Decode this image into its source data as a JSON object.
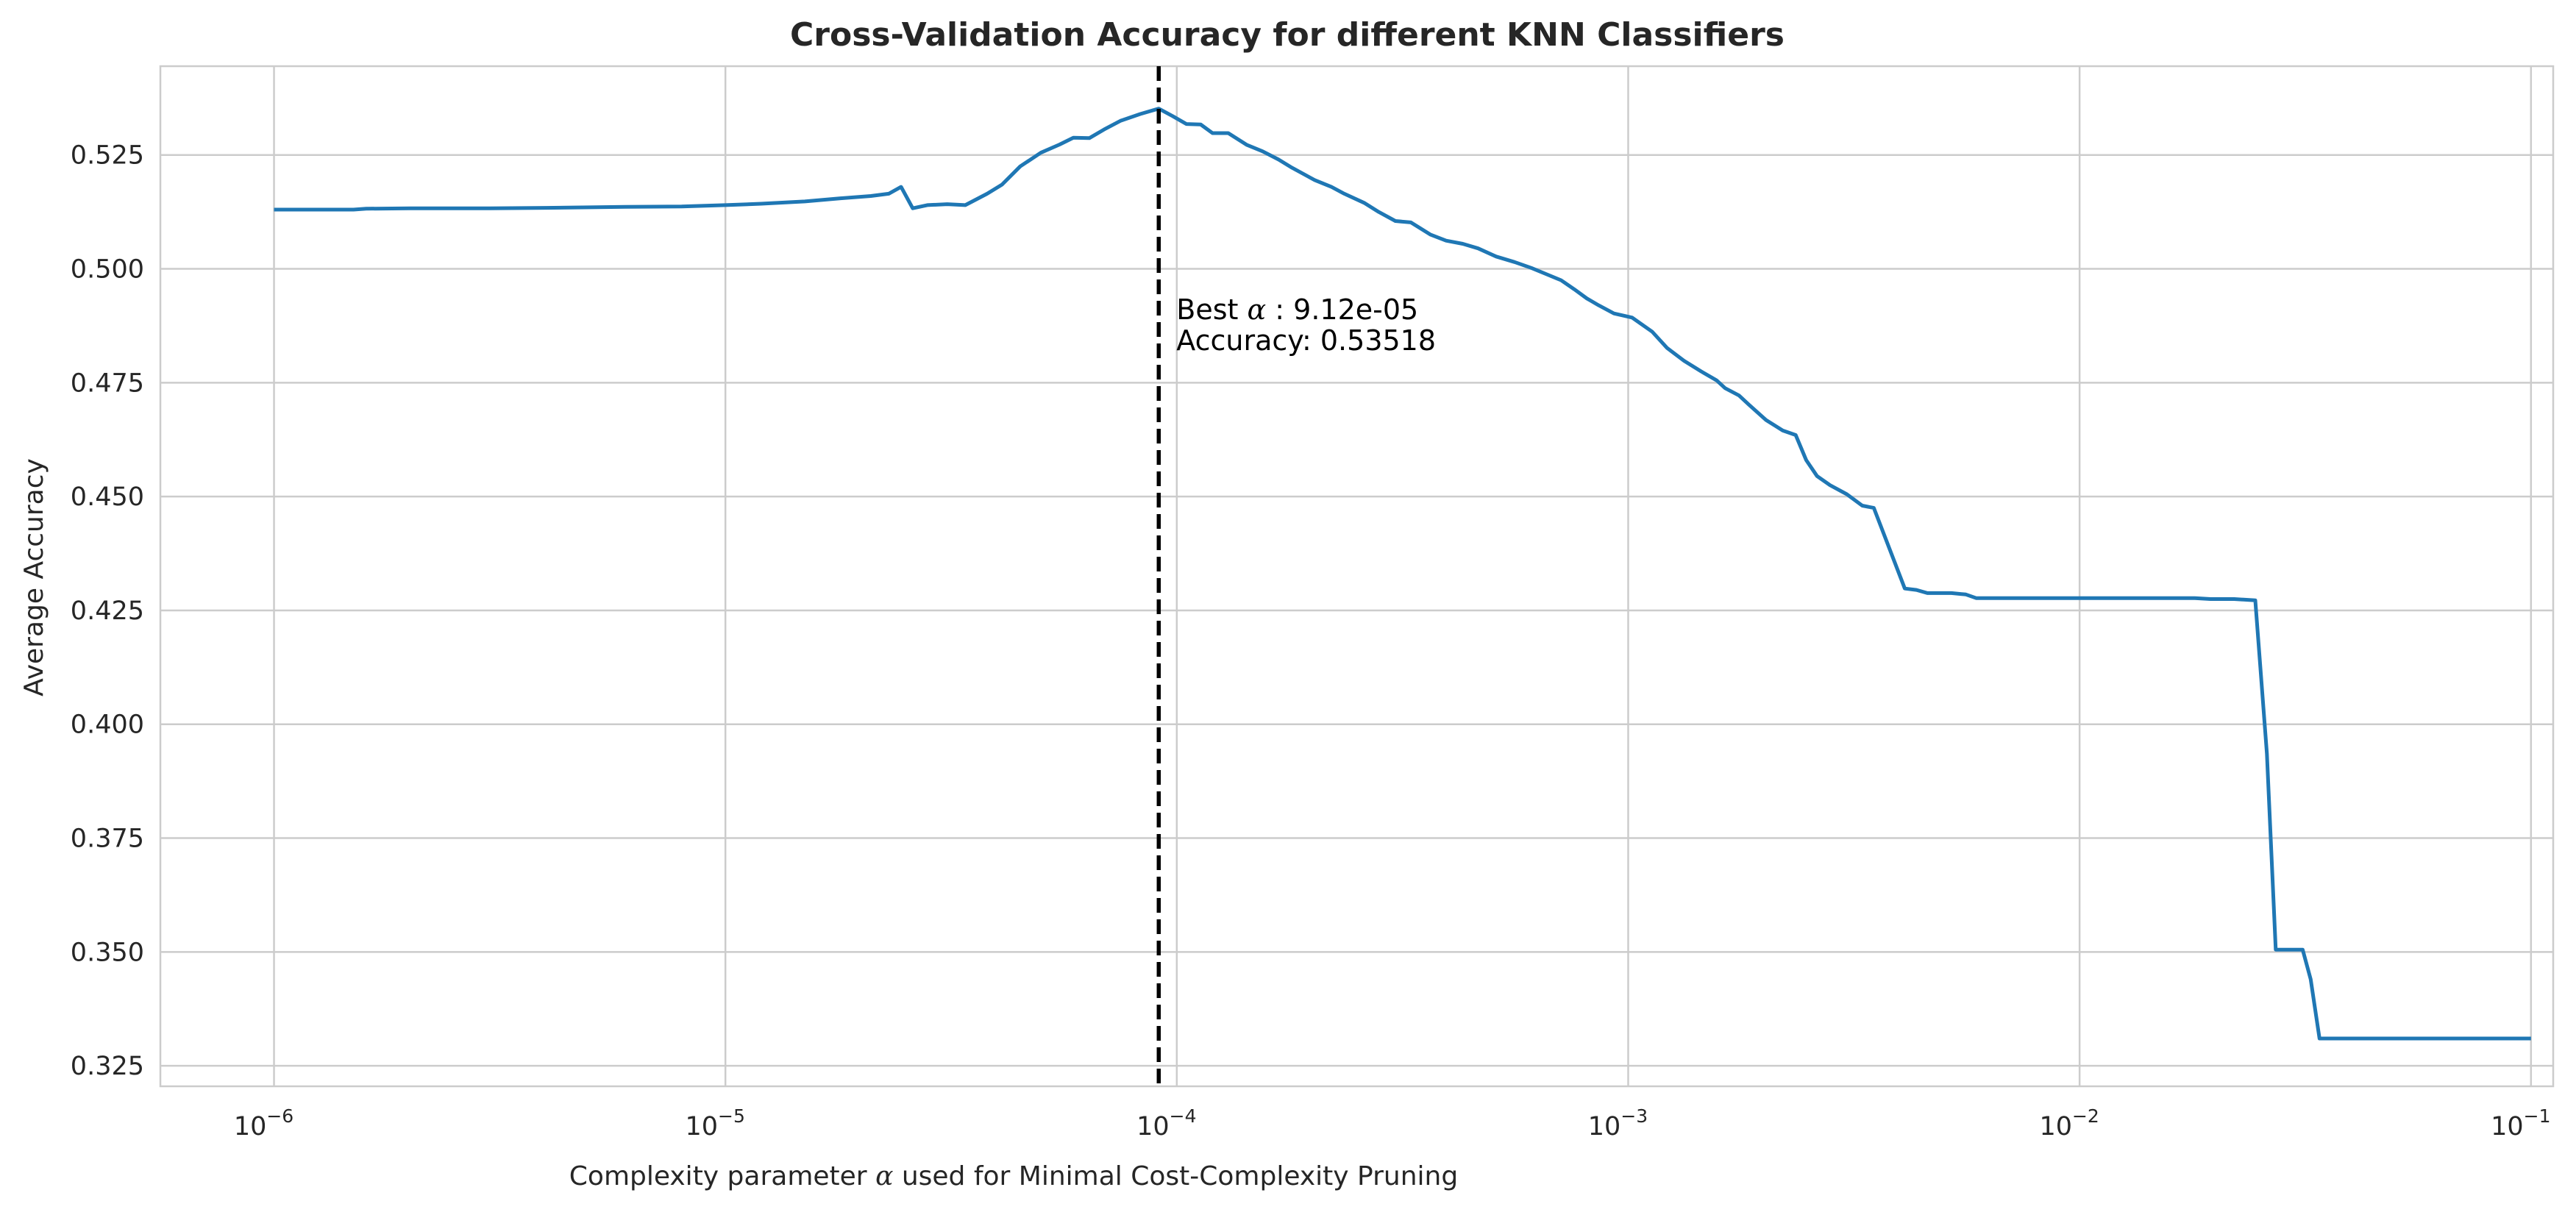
{
  "chart_data": {
    "type": "line",
    "title": "Cross-Validation Accuracy for different KNN Classifiers",
    "xlabel": "Complexity parameter α used for Minimal Cost-Complexity Pruning",
    "ylabel": "Average Accuracy",
    "xscale": "log",
    "xlim": [
      5.6e-07,
      0.112
    ],
    "ylim": [
      0.3205,
      0.5445
    ],
    "grid": true,
    "colors": {
      "series": "#1f77b4",
      "best_line": "#000000"
    },
    "x_ticks": [
      {
        "value": 1e-06,
        "base": "10",
        "exp": "−6"
      },
      {
        "value": 1e-05,
        "base": "10",
        "exp": "−5"
      },
      {
        "value": 0.0001,
        "base": "10",
        "exp": "−4"
      },
      {
        "value": 0.001,
        "base": "10",
        "exp": "−3"
      },
      {
        "value": 0.01,
        "base": "10",
        "exp": "−2"
      },
      {
        "value": 0.1,
        "base": "10",
        "exp": "−1"
      }
    ],
    "y_ticks": [
      {
        "value": 0.325,
        "label": "0.325"
      },
      {
        "value": 0.35,
        "label": "0.350"
      },
      {
        "value": 0.375,
        "label": "0.375"
      },
      {
        "value": 0.4,
        "label": "0.400"
      },
      {
        "value": 0.425,
        "label": "0.425"
      },
      {
        "value": 0.45,
        "label": "0.450"
      },
      {
        "value": 0.475,
        "label": "0.475"
      },
      {
        "value": 0.5,
        "label": "0.500"
      },
      {
        "value": 0.525,
        "label": "0.525"
      }
    ],
    "series": [
      {
        "x": [
          1e-06,
          1.2e-06,
          1.5e-06,
          1.6e-06,
          2e-06,
          3e-06,
          4e-06,
          6e-06,
          8e-06,
          1e-05,
          1.2e-05,
          1.5e-05,
          1.8e-05,
          2.1e-05,
          2.3e-05,
          2.45e-05,
          2.6e-05,
          2.8e-05,
          3.1e-05,
          3.4e-05,
          3.8e-05,
          4.1e-05,
          4.5e-05,
          5e-05,
          5.5e-05,
          5.9e-05,
          6.4e-05,
          6.9e-05,
          7.5e-05,
          8.3e-05,
          9.12e-05,
          9.8e-05,
          0.000105,
          0.000113,
          0.00012,
          0.00013,
          0.000143,
          0.000155,
          0.000168,
          0.00018,
          0.000202,
          0.00022,
          0.000235,
          0.00026,
          0.00028,
          0.000305,
          0.00033,
          0.000365,
          0.000395,
          0.00043,
          0.000465,
          0.00051,
          0.00056,
          0.00061,
          0.00066,
          0.00071,
          0.00076,
          0.00081,
          0.00086,
          0.00093,
          0.00102,
          0.00113,
          0.00122,
          0.00133,
          0.00145,
          0.00157,
          0.00164,
          0.00176,
          0.00185,
          0.00202,
          0.0022,
          0.00235,
          0.00248,
          0.00262,
          0.0028,
          0.00305,
          0.0033,
          0.0035,
          0.0041,
          0.00435,
          0.0046,
          0.0052,
          0.0056,
          0.0059,
          0.007,
          0.01,
          0.015,
          0.018,
          0.0195,
          0.022,
          0.0245,
          0.026,
          0.0272,
          0.028,
          0.0312,
          0.0325,
          0.034,
          0.04,
          0.06,
          0.1
        ],
        "y": [
          0.513,
          0.513,
          0.513,
          0.5132,
          0.5133,
          0.5133,
          0.5134,
          0.5136,
          0.5137,
          0.514,
          0.5143,
          0.5148,
          0.5155,
          0.516,
          0.5165,
          0.518,
          0.5133,
          0.514,
          0.5142,
          0.514,
          0.5165,
          0.5185,
          0.5225,
          0.5255,
          0.5273,
          0.5288,
          0.5287,
          0.5306,
          0.5325,
          0.534,
          0.53518,
          0.5335,
          0.5318,
          0.5317,
          0.5298,
          0.5298,
          0.5272,
          0.5258,
          0.524,
          0.5222,
          0.5195,
          0.518,
          0.5165,
          0.5145,
          0.5125,
          0.5105,
          0.5102,
          0.5075,
          0.5062,
          0.5055,
          0.5045,
          0.5027,
          0.5015,
          0.5002,
          0.4988,
          0.4975,
          0.4955,
          0.4935,
          0.492,
          0.4902,
          0.4893,
          0.4862,
          0.4826,
          0.4798,
          0.4775,
          0.4755,
          0.4738,
          0.4722,
          0.4702,
          0.4668,
          0.4645,
          0.4635,
          0.458,
          0.4545,
          0.4525,
          0.4505,
          0.448,
          0.4475,
          0.4298,
          0.4295,
          0.4288,
          0.4288,
          0.4285,
          0.4277,
          0.4277,
          0.4277,
          0.4277,
          0.4277,
          0.4275,
          0.4275,
          0.4272,
          0.3935,
          0.3505,
          0.3505,
          0.3505,
          0.344,
          0.331,
          0.331,
          0.331,
          0.331
        ]
      }
    ],
    "best": {
      "alpha": 9.12e-05,
      "accuracy": 0.53518,
      "label_prefix": "Best ",
      "label_symbol": "α",
      "label_value": " : 9.12e-05",
      "accuracy_label": "Accuracy: 0.53518"
    }
  }
}
